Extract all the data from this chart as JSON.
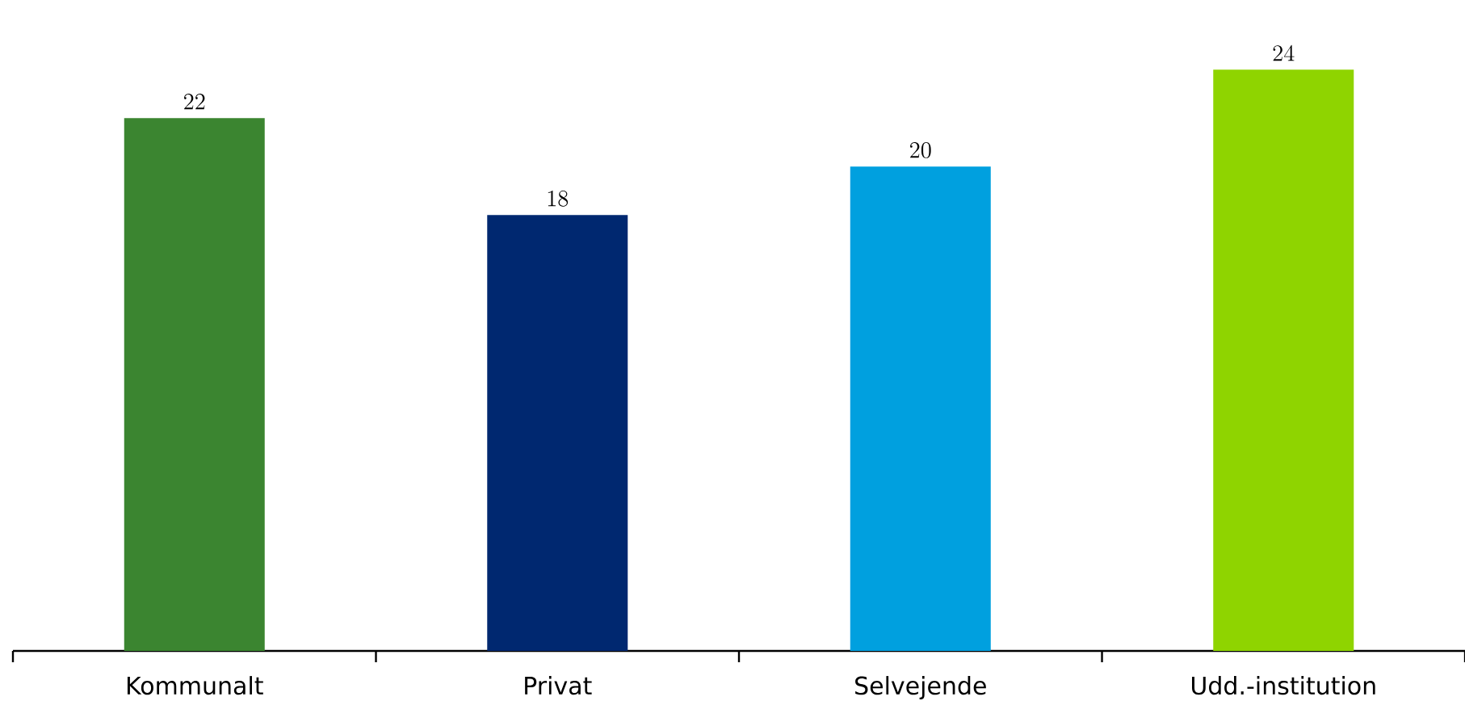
{
  "chart_data": {
    "type": "bar",
    "categories": [
      "Kommunalt",
      "Privat",
      "Selvejende",
      "Udd.-institution"
    ],
    "values": [
      22,
      18,
      20,
      24
    ],
    "colors": [
      "#3b8530",
      "#002870",
      "#00a0df",
      "#8fd400"
    ],
    "data_labels": true
  }
}
